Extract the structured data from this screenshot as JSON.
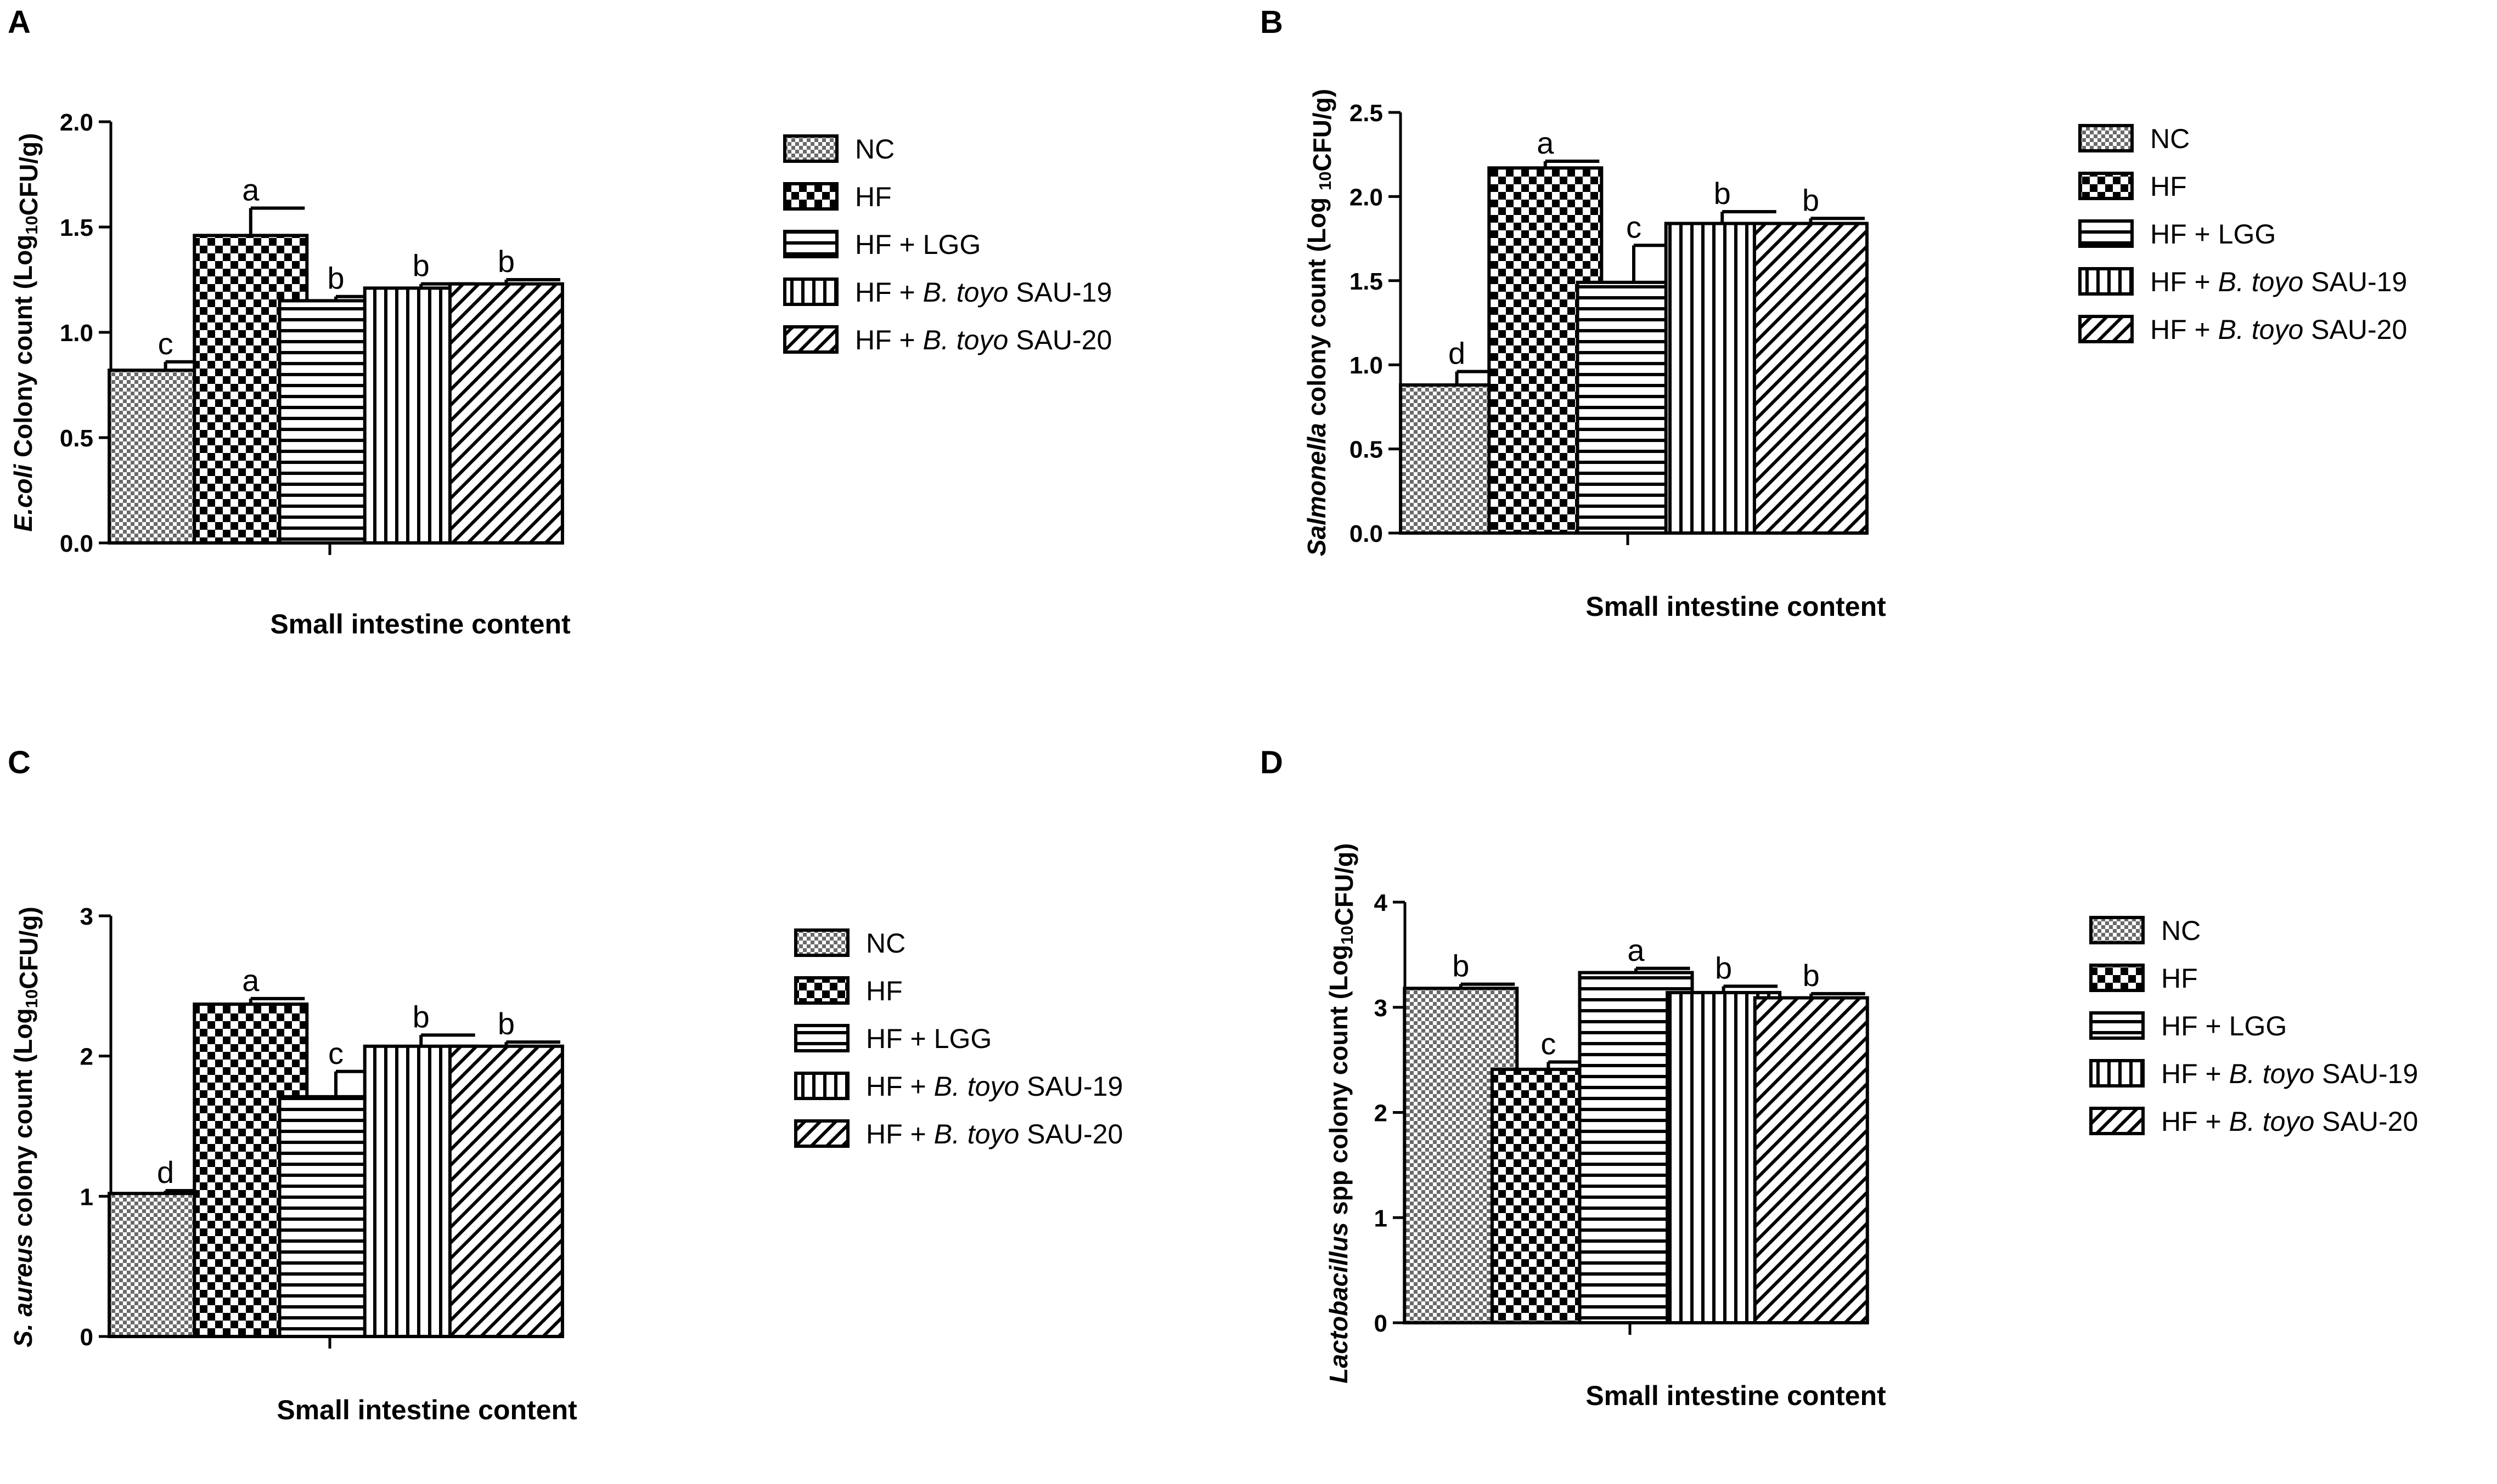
{
  "figure": {
    "xlabel": "Small intestine content",
    "legend_entries": [
      {
        "pattern": "dense-check",
        "parts": [
          {
            "text": "NC",
            "italic": false
          }
        ]
      },
      {
        "pattern": "check",
        "parts": [
          {
            "text": "HF",
            "italic": false
          }
        ]
      },
      {
        "pattern": "hline",
        "parts": [
          {
            "text": "HF + LGG",
            "italic": false
          }
        ]
      },
      {
        "pattern": "vline",
        "parts": [
          {
            "text": "HF + ",
            "italic": false
          },
          {
            "text": "B. toyo",
            "italic": true
          },
          {
            "text": " SAU-19",
            "italic": false
          }
        ]
      },
      {
        "pattern": "diag",
        "parts": [
          {
            "text": "HF + ",
            "italic": false
          },
          {
            "text": "B. toyo",
            "italic": true
          },
          {
            "text": " SAU-20",
            "italic": false
          }
        ]
      }
    ]
  },
  "chart_data": [
    {
      "panel": "A",
      "type": "bar",
      "title": "",
      "categories": [
        "NC",
        "HF",
        "HF + LGG",
        "HF + B. toyo SAU-19",
        "HF + B. toyo SAU-20"
      ],
      "values": [
        0.82,
        1.46,
        1.15,
        1.21,
        1.23
      ],
      "errors": [
        0.04,
        0.13,
        0.02,
        0.02,
        0.02
      ],
      "letters": [
        "c",
        "a",
        "b",
        "b",
        "b"
      ],
      "xlabel": "Small intestine content",
      "ylabel_parts": [
        {
          "text": "E.coli",
          "italic": true
        },
        {
          "text": " Colony count (Log",
          "italic": false
        },
        {
          "text": "10",
          "sub": true
        },
        {
          "text": "CFU/g)",
          "italic": false
        }
      ],
      "ylim": [
        0,
        2.0
      ],
      "yticks": [
        "0.0",
        "0.5",
        "1.0",
        "1.5",
        "2.0"
      ],
      "grid": false,
      "legend": "right"
    },
    {
      "panel": "B",
      "type": "bar",
      "title": "",
      "categories": [
        "NC",
        "HF",
        "HF + LGG",
        "HF + B. toyo SAU-19",
        "HF + B. toyo SAU-20"
      ],
      "values": [
        0.88,
        2.17,
        1.49,
        1.84,
        1.84
      ],
      "errors": [
        0.08,
        0.04,
        0.22,
        0.07,
        0.03
      ],
      "letters": [
        "d",
        "a",
        "c",
        "b",
        "b"
      ],
      "xlabel": "Small intestine content",
      "ylabel_parts": [
        {
          "text": "Salmonella",
          "italic": true
        },
        {
          "text": " colony count (Log ",
          "italic": false
        },
        {
          "text": "10",
          "sub": true
        },
        {
          "text": "CFU/g)",
          "italic": false
        }
      ],
      "ylim": [
        0,
        2.5
      ],
      "yticks": [
        "0.0",
        "0.5",
        "1.0",
        "1.5",
        "2.0",
        "2.5"
      ],
      "grid": false,
      "legend": "right"
    },
    {
      "panel": "C",
      "type": "bar",
      "title": "",
      "categories": [
        "NC",
        "HF",
        "HF + LGG",
        "HF + B. toyo SAU-19",
        "HF + B. toyo SAU-20"
      ],
      "values": [
        1.02,
        2.37,
        1.71,
        2.07,
        2.07
      ],
      "errors": [
        0.02,
        0.04,
        0.18,
        0.08,
        0.03
      ],
      "letters": [
        "d",
        "a",
        "c",
        "b",
        "b"
      ],
      "xlabel": "Small intestine content",
      "ylabel_parts": [
        {
          "text": "S. aureus",
          "italic": true
        },
        {
          "text": " colony count (Log",
          "italic": false
        },
        {
          "text": "10",
          "sub": true
        },
        {
          "text": "CFU/g)",
          "italic": false
        }
      ],
      "ylim": [
        0,
        3
      ],
      "yticks": [
        "0",
        "1",
        "2",
        "3"
      ],
      "grid": false,
      "legend": "right"
    },
    {
      "panel": "D",
      "type": "bar",
      "title": "",
      "categories": [
        "NC",
        "HF",
        "HF + LGG",
        "HF + B. toyo SAU-19",
        "HF + B. toyo SAU-20"
      ],
      "values": [
        3.18,
        2.41,
        3.33,
        3.14,
        3.09
      ],
      "errors": [
        0.04,
        0.07,
        0.04,
        0.06,
        0.04
      ],
      "letters": [
        "b",
        "c",
        "a",
        "b",
        "b"
      ],
      "xlabel": "Small intestine content",
      "ylabel_parts": [
        {
          "text": "Lactobacillus",
          "italic": true
        },
        {
          "text": " spp colony count (Log",
          "italic": false
        },
        {
          "text": "10",
          "sub": true
        },
        {
          "text": "CFU/g)",
          "italic": false
        }
      ],
      "ylim": [
        0,
        4
      ],
      "yticks": [
        "0",
        "1",
        "2",
        "3",
        "4"
      ],
      "grid": false,
      "legend": "right"
    }
  ]
}
